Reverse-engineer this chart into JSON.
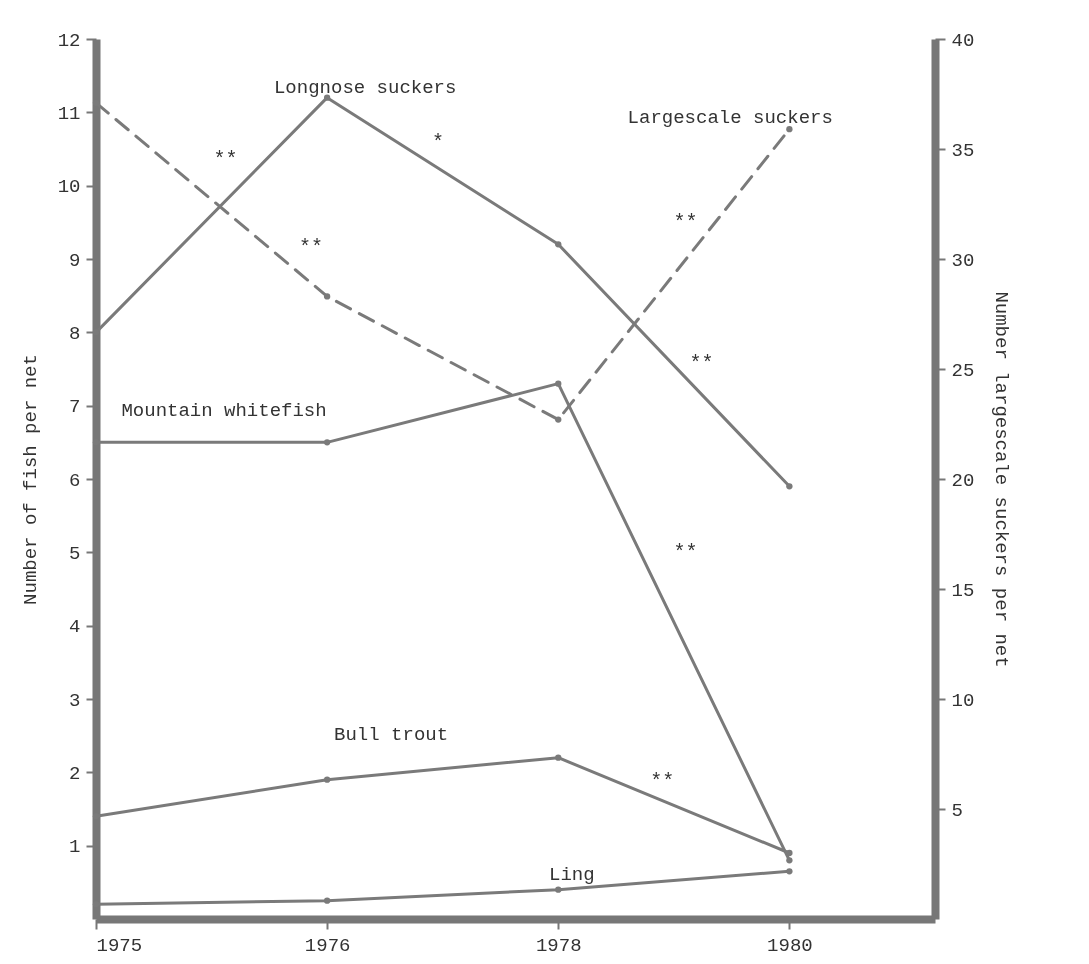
{
  "chart_data": {
    "type": "line",
    "ylabel": "Number of fish per net",
    "y2label": "Number largescale suckers per net",
    "categories": [
      "1975",
      "1976",
      "1978",
      "1980"
    ],
    "series": [
      {
        "name": "Longnose suckers",
        "color": "#7a7a7a",
        "line_style": "solid",
        "values": [
          8.0,
          11.2,
          9.2,
          5.9
        ]
      },
      {
        "name": "Largescale suckers",
        "color": "#7a7a7a",
        "line_style": "dashed",
        "axis": "y2",
        "values": [
          37.1,
          28.3,
          22.7,
          35.9
        ]
      },
      {
        "name": "Mountain whitefish",
        "color": "#7a7a7a",
        "line_style": "solid",
        "values": [
          6.5,
          6.5,
          7.3,
          0.8
        ]
      },
      {
        "name": "Bull trout",
        "color": "#7a7a7a",
        "line_style": "solid",
        "values": [
          1.4,
          1.9,
          2.2,
          0.9
        ]
      },
      {
        "name": "Ling",
        "color": "#7a7a7a",
        "line_style": "solid",
        "values": [
          0.2,
          0.25,
          0.4,
          0.65
        ]
      }
    ],
    "ylim": [
      0,
      12
    ],
    "yticks": [
      1,
      2,
      3,
      4,
      5,
      6,
      7,
      8,
      9,
      10,
      11,
      12
    ],
    "y2lim": [
      0,
      40
    ],
    "y2ticks": [
      5,
      10,
      15,
      20,
      25,
      30,
      35,
      40
    ],
    "marker": "circle",
    "annotations": [
      "**",
      "**",
      "*",
      "**",
      "**",
      "**",
      "**"
    ]
  }
}
